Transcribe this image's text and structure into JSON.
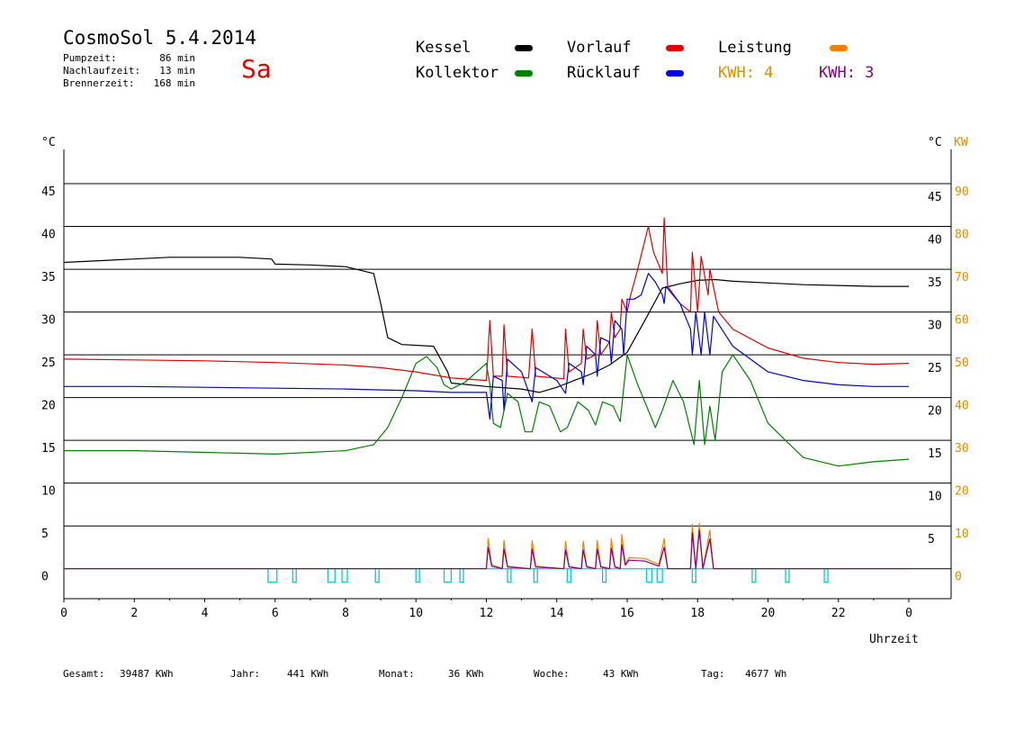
{
  "header": {
    "title": "CosmoSol 5.4.2014",
    "day": "Sa",
    "stats": [
      {
        "label": "Pumpzeit:",
        "value": "86 min"
      },
      {
        "label": "Nachlaufzeit:",
        "value": "13 min"
      },
      {
        "label": "Brennerzeit:",
        "value": "168 min"
      }
    ]
  },
  "legend": {
    "items": [
      {
        "label": "Kessel",
        "color": "#000000"
      },
      {
        "label": "Kollektor",
        "color": "#008000"
      },
      {
        "label": "Vorlauf",
        "color": "#e00000"
      },
      {
        "label": "Rücklauf",
        "color": "#0000e0"
      },
      {
        "label": "Leistung",
        "color": "#f08000"
      }
    ],
    "kwh": [
      {
        "label": "KWH: 4",
        "color": "#e08c00"
      },
      {
        "label": "KWH: 3",
        "color": "#800080"
      }
    ]
  },
  "footer": [
    {
      "label": "Gesamt:",
      "value": "39487 KWh"
    },
    {
      "label": "Jahr:",
      "value": "441 KWh"
    },
    {
      "label": "Monat:",
      "value": "36 KWh"
    },
    {
      "label": "Woche:",
      "value": "43 KWh"
    },
    {
      "label": "Tag:",
      "value": "4677 Wh"
    }
  ],
  "chart_data": {
    "type": "line",
    "xlabel": "Uhrzeit",
    "x_ticks": [
      "0",
      "2",
      "4",
      "6",
      "8",
      "10",
      "12",
      "14",
      "16",
      "18",
      "20",
      "22",
      "0"
    ],
    "xlim": [
      0,
      24
    ],
    "y_left_unit": "°C",
    "y_right_units": [
      "°C",
      "KW"
    ],
    "ylim": [
      -3.5,
      49
    ],
    "y_left_ticks": [
      "0",
      "5",
      "10",
      "15",
      "20",
      "25",
      "30",
      "35",
      "40",
      "45"
    ],
    "y_right_ticks_c": [
      "5",
      "10",
      "15",
      "20",
      "25",
      "30",
      "35",
      "40",
      "45"
    ],
    "y_right_ticks_kw": [
      "0",
      "10",
      "20",
      "30",
      "40",
      "50",
      "60",
      "70",
      "80",
      "90"
    ],
    "grid": true,
    "series": [
      {
        "name": "Kessel",
        "color": "#000000",
        "points": [
          [
            0,
            35.8
          ],
          [
            2,
            36.2
          ],
          [
            3,
            36.4
          ],
          [
            5,
            36.4
          ],
          [
            5.9,
            36.2
          ],
          [
            6,
            35.6
          ],
          [
            7,
            35.5
          ],
          [
            8,
            35.3
          ],
          [
            8.8,
            34.5
          ],
          [
            9,
            31
          ],
          [
            9.2,
            27
          ],
          [
            9.6,
            26.2
          ],
          [
            10.5,
            26
          ],
          [
            10.9,
            23
          ],
          [
            11,
            21.7
          ],
          [
            12,
            21.3
          ],
          [
            13,
            21
          ],
          [
            13.5,
            20.6
          ],
          [
            14,
            21.2
          ],
          [
            14.5,
            22
          ],
          [
            15,
            22.8
          ],
          [
            15.5,
            23.8
          ],
          [
            16,
            25.3
          ],
          [
            16.5,
            29
          ],
          [
            17,
            32.8
          ],
          [
            17.5,
            33.3
          ],
          [
            18,
            33.7
          ],
          [
            18.5,
            33.8
          ],
          [
            19,
            33.6
          ],
          [
            20,
            33.4
          ],
          [
            21,
            33.2
          ],
          [
            22,
            33.1
          ],
          [
            23,
            33
          ],
          [
            24,
            33
          ]
        ]
      },
      {
        "name": "Kollektor",
        "color": "#008000",
        "points": [
          [
            0,
            13.8
          ],
          [
            2,
            13.8
          ],
          [
            4,
            13.6
          ],
          [
            6,
            13.4
          ],
          [
            8,
            13.8
          ],
          [
            8.8,
            14.5
          ],
          [
            9.2,
            16.5
          ],
          [
            9.6,
            20
          ],
          [
            10,
            24
          ],
          [
            10.3,
            24.8
          ],
          [
            10.6,
            23.5
          ],
          [
            10.8,
            21.5
          ],
          [
            11,
            21
          ],
          [
            11.4,
            21.8
          ],
          [
            12,
            24
          ],
          [
            12.1,
            21.5
          ],
          [
            12.2,
            17
          ],
          [
            12.4,
            16.5
          ],
          [
            12.6,
            20.5
          ],
          [
            12.9,
            19.5
          ],
          [
            13.1,
            16
          ],
          [
            13.3,
            16
          ],
          [
            13.5,
            19.5
          ],
          [
            13.8,
            19
          ],
          [
            14.1,
            16
          ],
          [
            14.3,
            16.5
          ],
          [
            14.6,
            19.5
          ],
          [
            14.9,
            18.5
          ],
          [
            15.1,
            16.8
          ],
          [
            15.3,
            19.5
          ],
          [
            15.6,
            19
          ],
          [
            15.8,
            17.2
          ],
          [
            16,
            25
          ],
          [
            16.3,
            21.5
          ],
          [
            16.5,
            19.5
          ],
          [
            16.8,
            16.5
          ],
          [
            17,
            18.5
          ],
          [
            17.3,
            22
          ],
          [
            17.6,
            19.5
          ],
          [
            17.9,
            14.5
          ],
          [
            18.05,
            22
          ],
          [
            18.2,
            14.5
          ],
          [
            18.35,
            19
          ],
          [
            18.5,
            15
          ],
          [
            18.7,
            23
          ],
          [
            19,
            25
          ],
          [
            19.5,
            22
          ],
          [
            20,
            17
          ],
          [
            21,
            13
          ],
          [
            22,
            12
          ],
          [
            23,
            12.5
          ],
          [
            24,
            12.8
          ]
        ]
      },
      {
        "name": "Vorlauf",
        "color": "#e00000",
        "points": [
          [
            0,
            24.5
          ],
          [
            2,
            24.4
          ],
          [
            4,
            24.3
          ],
          [
            6,
            24.1
          ],
          [
            8,
            23.8
          ],
          [
            9,
            23.5
          ],
          [
            10,
            23
          ],
          [
            11,
            22.3
          ],
          [
            12,
            22
          ],
          [
            12.1,
            29
          ],
          [
            12.2,
            22.5
          ],
          [
            12.45,
            22.5
          ],
          [
            12.5,
            28.5
          ],
          [
            12.6,
            22.5
          ],
          [
            13.2,
            22.3
          ],
          [
            13.3,
            28
          ],
          [
            13.4,
            22.5
          ],
          [
            14.2,
            22.2
          ],
          [
            14.25,
            28
          ],
          [
            14.35,
            23
          ],
          [
            14.7,
            24
          ],
          [
            14.75,
            28
          ],
          [
            14.85,
            24.5
          ],
          [
            15.1,
            25
          ],
          [
            15.15,
            29
          ],
          [
            15.25,
            25
          ],
          [
            15.5,
            26.5
          ],
          [
            15.55,
            30
          ],
          [
            15.65,
            27
          ],
          [
            15.8,
            28
          ],
          [
            15.85,
            31.5
          ],
          [
            16,
            30
          ],
          [
            16.1,
            32
          ],
          [
            16.3,
            35
          ],
          [
            16.6,
            40
          ],
          [
            16.75,
            37
          ],
          [
            17,
            34.5
          ],
          [
            17.05,
            41
          ],
          [
            17.15,
            33
          ],
          [
            17.5,
            31
          ],
          [
            17.8,
            30
          ],
          [
            17.85,
            37
          ],
          [
            18,
            30
          ],
          [
            18.1,
            36.5
          ],
          [
            18.3,
            32
          ],
          [
            18.35,
            35
          ],
          [
            18.6,
            30
          ],
          [
            19,
            28
          ],
          [
            20,
            25.8
          ],
          [
            21,
            24.6
          ],
          [
            22,
            24.1
          ],
          [
            23,
            23.9
          ],
          [
            24,
            24
          ]
        ]
      },
      {
        "name": "Rücklauf",
        "color": "#0000e0",
        "points": [
          [
            0,
            21.3
          ],
          [
            2,
            21.3
          ],
          [
            4,
            21.2
          ],
          [
            6,
            21.1
          ],
          [
            8,
            21
          ],
          [
            9,
            20.9
          ],
          [
            10,
            20.8
          ],
          [
            11,
            20.6
          ],
          [
            12,
            20.6
          ],
          [
            12.1,
            17.5
          ],
          [
            12.2,
            22.5
          ],
          [
            12.45,
            22
          ],
          [
            12.5,
            18.5
          ],
          [
            12.6,
            24.5
          ],
          [
            13,
            23
          ],
          [
            13.3,
            19.5
          ],
          [
            13.4,
            23.5
          ],
          [
            14,
            22
          ],
          [
            14.25,
            20.5
          ],
          [
            14.35,
            24
          ],
          [
            14.7,
            23
          ],
          [
            14.75,
            21.5
          ],
          [
            14.85,
            26
          ],
          [
            15.1,
            25
          ],
          [
            15.15,
            22.5
          ],
          [
            15.25,
            27
          ],
          [
            15.5,
            26.5
          ],
          [
            15.55,
            24
          ],
          [
            15.65,
            29
          ],
          [
            15.85,
            28
          ],
          [
            15.9,
            25
          ],
          [
            16,
            31.5
          ],
          [
            16.2,
            31.5
          ],
          [
            16.4,
            32
          ],
          [
            16.6,
            34.5
          ],
          [
            16.8,
            33.5
          ],
          [
            17,
            32
          ],
          [
            17.05,
            31
          ],
          [
            17.1,
            33
          ],
          [
            17.5,
            31
          ],
          [
            17.8,
            28
          ],
          [
            17.85,
            25
          ],
          [
            17.95,
            30
          ],
          [
            18.1,
            25
          ],
          [
            18.2,
            30
          ],
          [
            18.35,
            25
          ],
          [
            18.45,
            29.5
          ],
          [
            19,
            26
          ],
          [
            20,
            23
          ],
          [
            21,
            22
          ],
          [
            22,
            21.5
          ],
          [
            23,
            21.3
          ],
          [
            24,
            21.3
          ]
        ]
      },
      {
        "name": "Leistung",
        "color": "#f08000",
        "points": [
          [
            0,
            0
          ],
          [
            12,
            0
          ],
          [
            12.05,
            3.5
          ],
          [
            12.15,
            0.5
          ],
          [
            12.45,
            0
          ],
          [
            12.5,
            3.3
          ],
          [
            12.6,
            0.3
          ],
          [
            13.25,
            0
          ],
          [
            13.3,
            3.3
          ],
          [
            13.4,
            0.3
          ],
          [
            14.2,
            0
          ],
          [
            14.25,
            3.2
          ],
          [
            14.35,
            0.3
          ],
          [
            14.7,
            0
          ],
          [
            14.75,
            3.2
          ],
          [
            14.85,
            0.3
          ],
          [
            15.1,
            0
          ],
          [
            15.15,
            3.3
          ],
          [
            15.25,
            0.3
          ],
          [
            15.5,
            0
          ],
          [
            15.55,
            3.5
          ],
          [
            15.65,
            0.3
          ],
          [
            15.8,
            0
          ],
          [
            15.85,
            4
          ],
          [
            15.95,
            0.5
          ],
          [
            16.05,
            1.3
          ],
          [
            16.5,
            1.2
          ],
          [
            16.9,
            0.5
          ],
          [
            17.05,
            3.5
          ],
          [
            17.15,
            0
          ],
          [
            17.8,
            0
          ],
          [
            17.85,
            5.2
          ],
          [
            17.95,
            0
          ],
          [
            18.05,
            5.3
          ],
          [
            18.15,
            0
          ],
          [
            18.35,
            4.5
          ],
          [
            18.45,
            0
          ],
          [
            24,
            0
          ]
        ]
      },
      {
        "name": "Leistung-2",
        "color": "#800080",
        "points": [
          [
            0,
            0
          ],
          [
            12,
            0
          ],
          [
            12.05,
            2.5
          ],
          [
            12.15,
            0.3
          ],
          [
            12.45,
            0
          ],
          [
            12.5,
            2.3
          ],
          [
            12.6,
            0.2
          ],
          [
            13.25,
            0
          ],
          [
            13.3,
            2.3
          ],
          [
            13.4,
            0.2
          ],
          [
            14.2,
            0
          ],
          [
            14.25,
            2.2
          ],
          [
            14.35,
            0.2
          ],
          [
            14.7,
            0
          ],
          [
            14.75,
            2.2
          ],
          [
            14.85,
            0.2
          ],
          [
            15.1,
            0
          ],
          [
            15.15,
            2.3
          ],
          [
            15.25,
            0.2
          ],
          [
            15.5,
            0
          ],
          [
            15.55,
            2.4
          ],
          [
            15.65,
            0.2
          ],
          [
            15.8,
            0
          ],
          [
            15.85,
            2.8
          ],
          [
            15.95,
            0.4
          ],
          [
            16.05,
            1
          ],
          [
            16.5,
            0.9
          ],
          [
            16.9,
            0.3
          ],
          [
            17.05,
            2.5
          ],
          [
            17.15,
            0
          ],
          [
            17.8,
            0
          ],
          [
            17.85,
            4.2
          ],
          [
            17.95,
            0
          ],
          [
            18.05,
            4.5
          ],
          [
            18.15,
            0
          ],
          [
            18.35,
            3.5
          ],
          [
            18.45,
            0
          ],
          [
            24,
            0
          ]
        ]
      }
    ],
    "pump_markers": {
      "color": "#00c8e0",
      "segments": [
        [
          5.8,
          6.05
        ],
        [
          6.5,
          6.6
        ],
        [
          7.5,
          7.7
        ],
        [
          7.9,
          8.05
        ],
        [
          8.85,
          8.95
        ],
        [
          10,
          10.1
        ],
        [
          10.8,
          11
        ],
        [
          11.25,
          11.35
        ],
        [
          12.6,
          12.7
        ],
        [
          13.35,
          13.45
        ],
        [
          14.3,
          14.4
        ],
        [
          15.3,
          15.4
        ],
        [
          16.55,
          16.7
        ],
        [
          16.85,
          17
        ],
        [
          17.85,
          17.95
        ],
        [
          19.55,
          19.65
        ],
        [
          20.5,
          20.6
        ],
        [
          21.6,
          21.7
        ]
      ]
    }
  }
}
